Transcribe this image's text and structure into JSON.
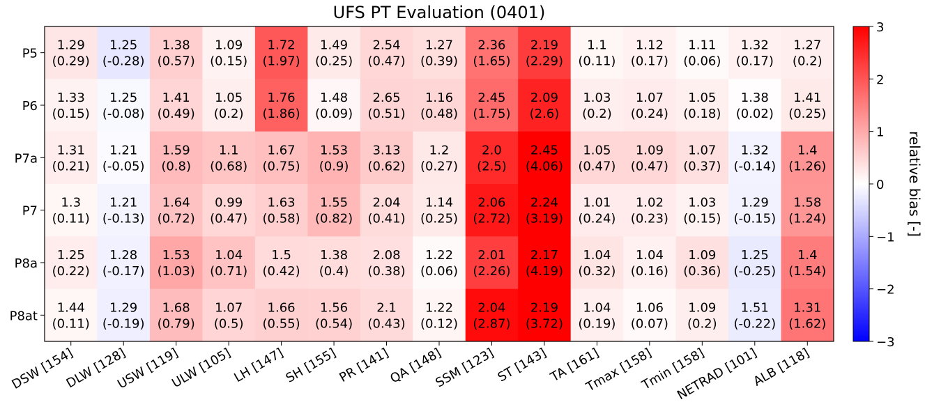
{
  "chart_data": {
    "type": "heatmap",
    "title": "UFS PT Evaluation (0401)",
    "rows": [
      "P5",
      "P6",
      "P7a",
      "P7",
      "P8a",
      "P8at"
    ],
    "columns": [
      "DSW [154]",
      "DLW [128]",
      "USW [119]",
      "ULW [105]",
      "LH [147]",
      "SH [155]",
      "PR [141]",
      "QA [148]",
      "SSM [123]",
      "ST [143]",
      "TA [161]",
      "Tmax [158]",
      "Tmin [158]",
      "NETRAD [101]",
      "ALB [118]"
    ],
    "metric_top": [
      [
        "1.29",
        "1.25",
        "1.38",
        "1.09",
        "1.72",
        "1.49",
        "2.54",
        "1.27",
        "2.36",
        "2.19",
        "1.1",
        "1.12",
        "1.11",
        "1.32",
        "1.27"
      ],
      [
        "1.33",
        "1.25",
        "1.41",
        "1.05",
        "1.76",
        "1.48",
        "2.65",
        "1.16",
        "2.45",
        "2.09",
        "1.03",
        "1.07",
        "1.05",
        "1.38",
        "1.41"
      ],
      [
        "1.31",
        "1.21",
        "1.59",
        "1.1",
        "1.67",
        "1.53",
        "3.13",
        "1.2",
        "2.0",
        "2.45",
        "1.05",
        "1.09",
        "1.07",
        "1.32",
        "1.4"
      ],
      [
        "1.3",
        "1.21",
        "1.64",
        "0.99",
        "1.63",
        "1.55",
        "2.04",
        "1.14",
        "2.06",
        "2.24",
        "1.01",
        "1.02",
        "1.03",
        "1.29",
        "1.58"
      ],
      [
        "1.25",
        "1.28",
        "1.53",
        "1.04",
        "1.5",
        "1.38",
        "2.08",
        "1.22",
        "2.01",
        "2.17",
        "1.04",
        "1.04",
        "1.09",
        "1.25",
        "1.4"
      ],
      [
        "1.44",
        "1.29",
        "1.68",
        "1.07",
        "1.66",
        "1.56",
        "2.1",
        "1.22",
        "2.04",
        "2.19",
        "1.04",
        "1.06",
        "1.09",
        "1.51",
        "1.31"
      ]
    ],
    "relative_bias": [
      [
        "0.29",
        "-0.28",
        "0.57",
        "0.15",
        "1.97",
        "0.25",
        "0.47",
        "0.39",
        "1.65",
        "2.29",
        "0.11",
        "0.17",
        "0.06",
        "0.17",
        "0.2"
      ],
      [
        "0.15",
        "-0.08",
        "0.49",
        "0.2",
        "1.86",
        "0.09",
        "0.51",
        "0.48",
        "1.75",
        "2.6",
        "0.2",
        "0.24",
        "0.18",
        "0.02",
        "0.25"
      ],
      [
        "0.21",
        "-0.05",
        "0.8",
        "0.68",
        "0.75",
        "0.9",
        "0.62",
        "0.27",
        "2.5",
        "4.06",
        "0.47",
        "0.47",
        "0.37",
        "-0.14",
        "1.26"
      ],
      [
        "0.11",
        "-0.13",
        "0.72",
        "0.47",
        "0.58",
        "0.82",
        "0.41",
        "0.25",
        "2.72",
        "3.19",
        "0.24",
        "0.23",
        "0.15",
        "-0.15",
        "1.24"
      ],
      [
        "0.22",
        "-0.17",
        "1.03",
        "0.71",
        "0.42",
        "0.4",
        "0.38",
        "0.06",
        "2.26",
        "4.19",
        "0.32",
        "0.16",
        "0.36",
        "-0.25",
        "1.54"
      ],
      [
        "0.11",
        "-0.19",
        "0.79",
        "0.5",
        "0.55",
        "0.54",
        "0.43",
        "0.12",
        "2.87",
        "3.72",
        "0.19",
        "0.07",
        "0.2",
        "-0.22",
        "1.62"
      ]
    ],
    "colormap": "bwr",
    "colors": {
      "negative": "#0000ff",
      "zero": "#ffffff",
      "positive": "#ff0000"
    },
    "colorbar": {
      "label": "relative bias [-]",
      "range": [
        -3,
        3
      ],
      "ticks": [
        "3",
        "2",
        "1",
        "0",
        "−1",
        "−2",
        "−3"
      ],
      "tick_values": [
        3,
        2,
        1,
        0,
        -1,
        -2,
        -3
      ]
    },
    "grid": false,
    "cell_label_format": "value\n(relative bias)"
  }
}
